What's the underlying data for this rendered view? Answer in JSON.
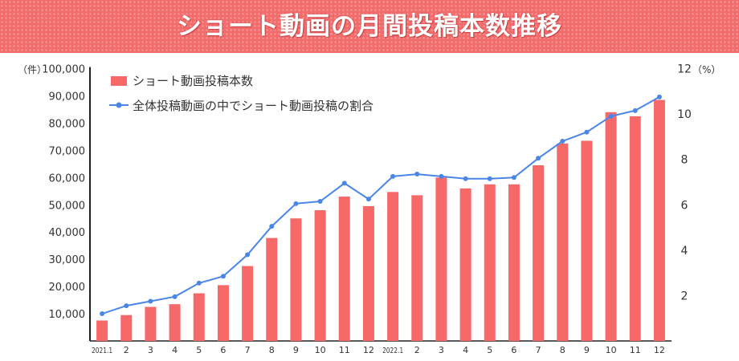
{
  "banner": {
    "title": "ショート動画の月間投稿本数推移"
  },
  "chart_data": {
    "type": "bar",
    "title": "ショート動画の月間投稿本数推移",
    "categories": [
      "2021.1",
      "2",
      "3",
      "4",
      "5",
      "6",
      "7",
      "8",
      "9",
      "10",
      "11",
      "12",
      "2022.1",
      "2",
      "3",
      "4",
      "5",
      "6",
      "7",
      "8",
      "9",
      "10",
      "11",
      "12"
    ],
    "left_axis": {
      "unit": "（件）",
      "ticks": [
        "10,000",
        "20,000",
        "30,000",
        "40,000",
        "50,000",
        "60,000",
        "70,000",
        "80,000",
        "90,000",
        "100,000"
      ],
      "ylim": [
        0,
        100000
      ]
    },
    "right_axis": {
      "unit": "（%）",
      "ticks": [
        "2",
        "4",
        "6",
        "8",
        "10",
        "12"
      ],
      "ylim": [
        0,
        12
      ]
    },
    "series": [
      {
        "name": "ショート動画投稿本数",
        "type": "bar",
        "axis": "left",
        "color": "#f76868",
        "values": [
          7500,
          9500,
          12500,
          13500,
          17500,
          20500,
          27500,
          37800,
          45000,
          48000,
          53000,
          49500,
          54700,
          53500,
          60000,
          56000,
          57500,
          57500,
          64500,
          72500,
          73500,
          84000,
          82500,
          88500
        ]
      },
      {
        "name": "全体投稿動画の中でショート動画投稿の割合",
        "type": "line",
        "axis": "right",
        "color": "#4a86e8",
        "values": [
          1.2,
          1.55,
          1.75,
          1.95,
          2.55,
          2.85,
          3.8,
          5.05,
          6.05,
          6.15,
          6.95,
          6.25,
          7.25,
          7.35,
          7.25,
          7.15,
          7.15,
          7.2,
          8.05,
          8.8,
          9.2,
          9.9,
          10.15,
          10.75
        ]
      }
    ],
    "legend_position": "top-left",
    "grid": false
  }
}
